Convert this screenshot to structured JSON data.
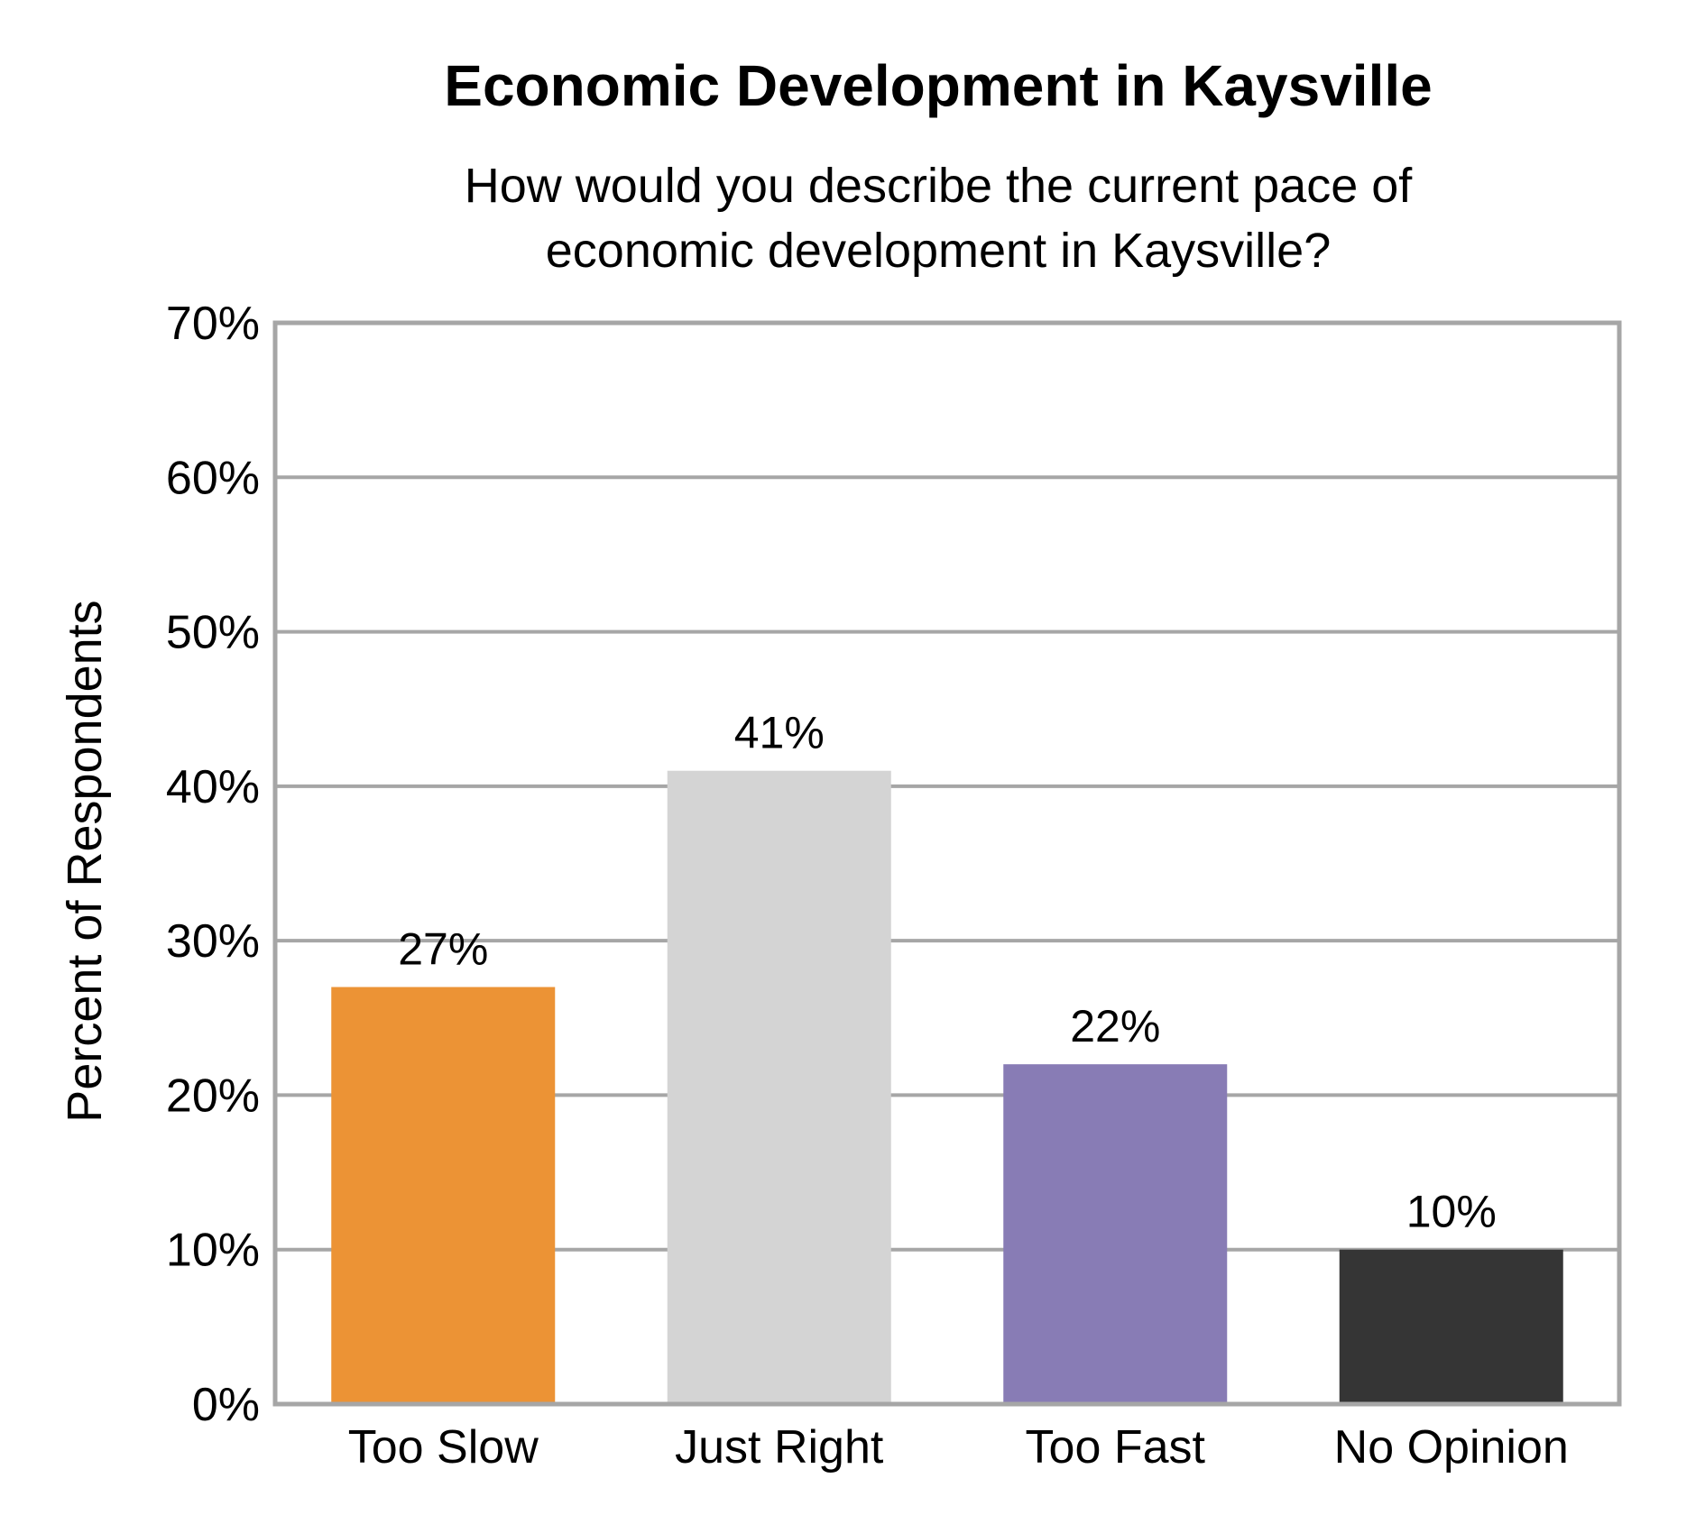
{
  "chart_data": {
    "type": "bar",
    "title": "Economic Development in Kaysville",
    "subtitle_lines": [
      "How would you describe the current pace of",
      "economic development in Kaysville?"
    ],
    "xlabel": "",
    "ylabel": "Percent of Respondents",
    "ylim": [
      0,
      70
    ],
    "y_ticks": [
      0,
      10,
      20,
      30,
      40,
      50,
      60,
      70
    ],
    "y_tick_labels": [
      "0%",
      "10%",
      "20%",
      "30%",
      "40%",
      "50%",
      "60%",
      "70%"
    ],
    "grid": true,
    "legend": "none",
    "categories": [
      "Too Slow",
      "Just Right",
      "Too Fast",
      "No Opinion"
    ],
    "values": [
      27,
      41,
      22,
      10
    ],
    "data_labels": [
      "27%",
      "41%",
      "22%",
      "10%"
    ],
    "colors": [
      "#EC9335",
      "#D4D4D4",
      "#887CB5",
      "#353535"
    ]
  }
}
